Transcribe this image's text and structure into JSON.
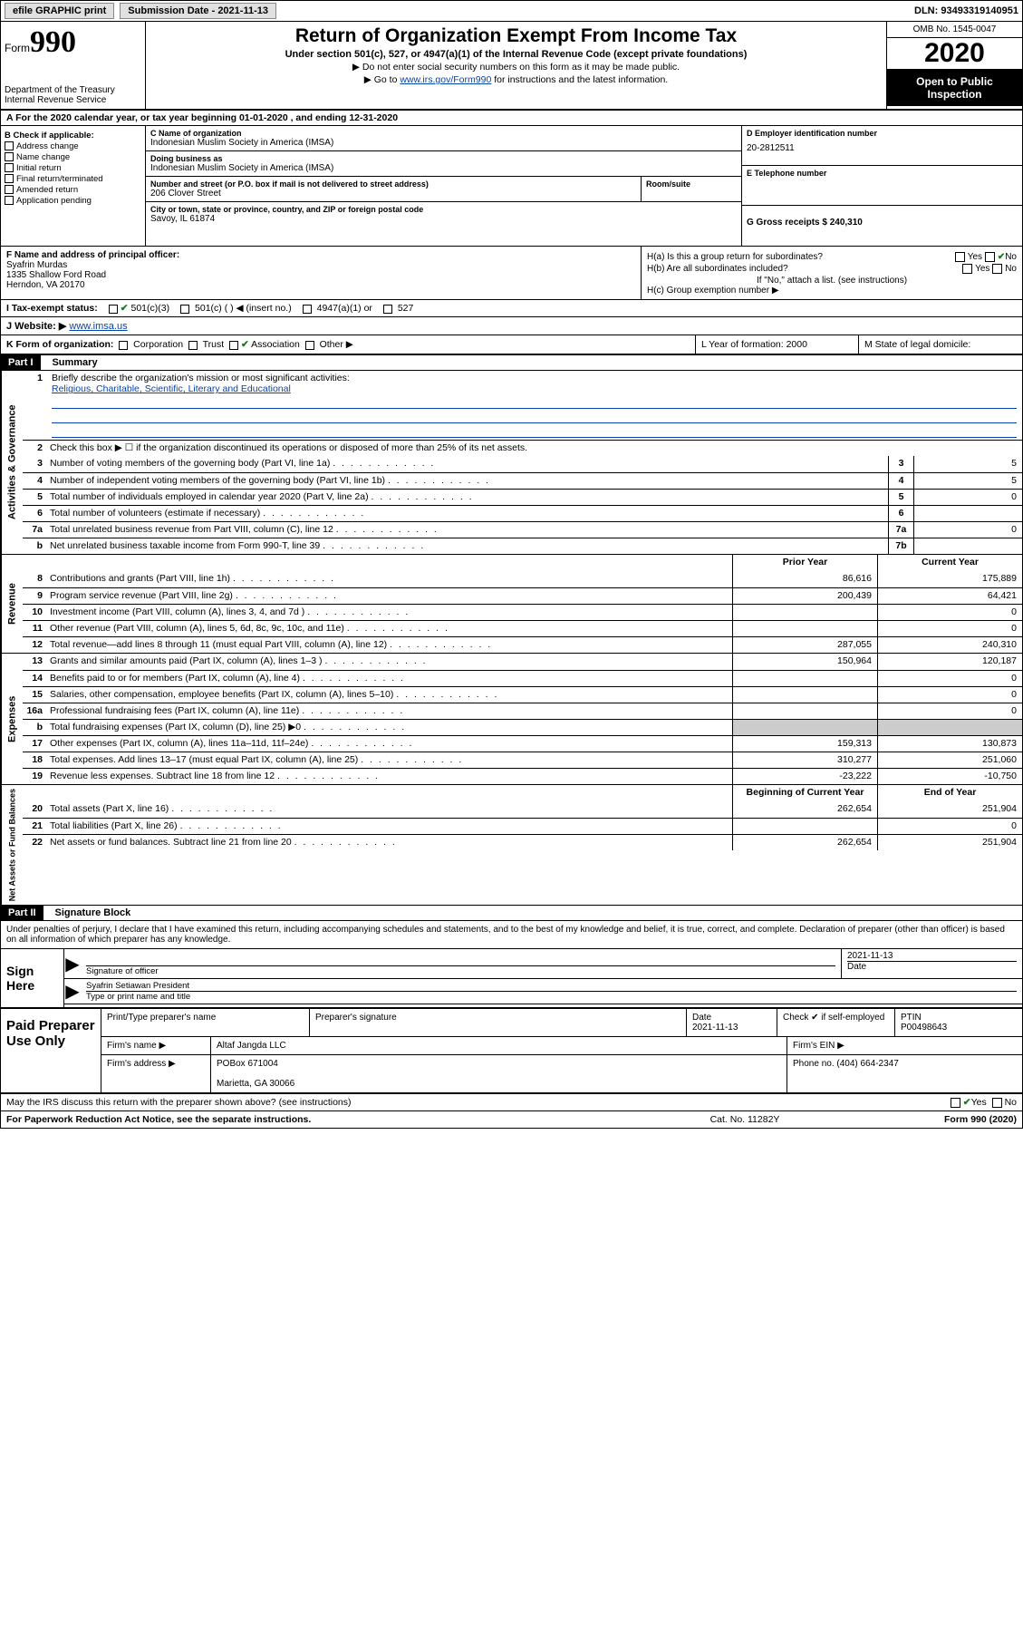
{
  "colors": {
    "link": "#0645ad",
    "check": "#1a7a1a",
    "shade": "#cccccc"
  },
  "topbar": {
    "efile": "efile GRAPHIC print",
    "subdate_label": "Submission Date - 2021-11-13",
    "dln": "DLN: 93493319140951"
  },
  "header": {
    "form_prefix": "Form",
    "form_number": "990",
    "dept1": "Department of the Treasury",
    "dept2": "Internal Revenue Service",
    "title": "Return of Organization Exempt From Income Tax",
    "subtitle": "Under section 501(c), 527, or 4947(a)(1) of the Internal Revenue Code (except private foundations)",
    "note1": "▶ Do not enter social security numbers on this form as it may be made public.",
    "note2_pre": "▶ Go to ",
    "note2_link": "www.irs.gov/Form990",
    "note2_post": " for instructions and the latest information.",
    "omb": "OMB No. 1545-0047",
    "year": "2020",
    "otp1": "Open to Public",
    "otp2": "Inspection"
  },
  "rowA": {
    "text": "A For the 2020 calendar year, or tax year beginning 01-01-2020    , and ending 12-31-2020"
  },
  "colB": {
    "label": "B Check if applicable:",
    "items": [
      "Address change",
      "Name change",
      "Initial return",
      "Final return/terminated",
      "Amended return",
      "Application pending"
    ]
  },
  "colC": {
    "name_label": "C Name of organization",
    "name": "Indonesian Muslim Society in America (IMSA)",
    "dba_label": "Doing business as",
    "dba": "Indonesian Muslim Society in America (IMSA)",
    "street_label": "Number and street (or P.O. box if mail is not delivered to street address)",
    "room_label": "Room/suite",
    "street": "206 Clover Street",
    "city_label": "City or town, state or province, country, and ZIP or foreign postal code",
    "city": "Savoy, IL  61874"
  },
  "colD": {
    "ein_label": "D Employer identification number",
    "ein": "20-2812511",
    "tel_label": "E Telephone number",
    "gross_label": "G Gross receipts $ 240,310"
  },
  "rowF": {
    "label": "F  Name and address of principal officer:",
    "name": "Syafrin Murdas",
    "addr1": "1335 Shallow Ford Road",
    "addr2": "Herndon, VA  20170"
  },
  "rowH": {
    "ha": "H(a)  Is this a group return for subordinates?",
    "hb": "H(b)  Are all subordinates included?",
    "hb_note": "If \"No,\" attach a list. (see instructions)",
    "hc": "H(c)  Group exemption number ▶",
    "ha_no_checked": true
  },
  "rowI": {
    "label": "I     Tax-exempt status:",
    "opt1": "501(c)(3)",
    "opt2": "501(c) (  ) ◀ (insert no.)",
    "opt3": "4947(a)(1) or",
    "opt4": "527",
    "opt1_checked": true
  },
  "rowJ": {
    "label": "J    Website: ▶",
    "url": "www.imsa.us"
  },
  "rowK": {
    "k": "K Form of organization:",
    "opts": [
      "Corporation",
      "Trust",
      "Association",
      "Other ▶"
    ],
    "checked_idx": 2,
    "l": "L Year of formation: 2000",
    "m": "M State of legal domicile:"
  },
  "part1": {
    "hdr": "Part I",
    "label": "Summary",
    "q1_label": "Briefly describe the organization's mission or most significant activities:",
    "q1_text": "Religious, Charitable, Scientific, Literary and Educational",
    "q2": "Check this box ▶ ☐  if the organization discontinued its operations or disposed of more than 25% of its net assets."
  },
  "gov_rows": [
    {
      "n": "3",
      "t": "Number of voting members of the governing body (Part VI, line 1a)",
      "box": "3",
      "v": "5"
    },
    {
      "n": "4",
      "t": "Number of independent voting members of the governing body (Part VI, line 1b)",
      "box": "4",
      "v": "5"
    },
    {
      "n": "5",
      "t": "Total number of individuals employed in calendar year 2020 (Part V, line 2a)",
      "box": "5",
      "v": "0"
    },
    {
      "n": "6",
      "t": "Total number of volunteers (estimate if necessary)",
      "box": "6",
      "v": ""
    },
    {
      "n": "7a",
      "t": "Total unrelated business revenue from Part VIII, column (C), line 12",
      "box": "7a",
      "v": "0"
    },
    {
      "n": "b",
      "t": "Net unrelated business taxable income from Form 990-T, line 39",
      "box": "7b",
      "v": ""
    }
  ],
  "rev_hdr": {
    "prior": "Prior Year",
    "curr": "Current Year"
  },
  "rev_rows": [
    {
      "n": "8",
      "t": "Contributions and grants (Part VIII, line 1h)",
      "p": "86,616",
      "c": "175,889"
    },
    {
      "n": "9",
      "t": "Program service revenue (Part VIII, line 2g)",
      "p": "200,439",
      "c": "64,421"
    },
    {
      "n": "10",
      "t": "Investment income (Part VIII, column (A), lines 3, 4, and 7d )",
      "p": "",
      "c": "0"
    },
    {
      "n": "11",
      "t": "Other revenue (Part VIII, column (A), lines 5, 6d, 8c, 9c, 10c, and 11e)",
      "p": "",
      "c": "0"
    },
    {
      "n": "12",
      "t": "Total revenue—add lines 8 through 11 (must equal Part VIII, column (A), line 12)",
      "p": "287,055",
      "c": "240,310"
    }
  ],
  "exp_rows": [
    {
      "n": "13",
      "t": "Grants and similar amounts paid (Part IX, column (A), lines 1–3 )",
      "p": "150,964",
      "c": "120,187"
    },
    {
      "n": "14",
      "t": "Benefits paid to or for members (Part IX, column (A), line 4)",
      "p": "",
      "c": "0"
    },
    {
      "n": "15",
      "t": "Salaries, other compensation, employee benefits (Part IX, column (A), lines 5–10)",
      "p": "",
      "c": "0"
    },
    {
      "n": "16a",
      "t": "Professional fundraising fees (Part IX, column (A), line 11e)",
      "p": "",
      "c": "0"
    },
    {
      "n": "b",
      "t": "Total fundraising expenses (Part IX, column (D), line 25) ▶0",
      "p": "",
      "c": "",
      "shade": true
    },
    {
      "n": "17",
      "t": "Other expenses (Part IX, column (A), lines 11a–11d, 11f–24e)",
      "p": "159,313",
      "c": "130,873"
    },
    {
      "n": "18",
      "t": "Total expenses. Add lines 13–17 (must equal Part IX, column (A), line 25)",
      "p": "310,277",
      "c": "251,060"
    },
    {
      "n": "19",
      "t": "Revenue less expenses. Subtract line 18 from line 12",
      "p": "-23,222",
      "c": "-10,750"
    }
  ],
  "net_hdr": {
    "beg": "Beginning of Current Year",
    "end": "End of Year"
  },
  "net_rows": [
    {
      "n": "20",
      "t": "Total assets (Part X, line 16)",
      "p": "262,654",
      "c": "251,904"
    },
    {
      "n": "21",
      "t": "Total liabilities (Part X, line 26)",
      "p": "",
      "c": "0"
    },
    {
      "n": "22",
      "t": "Net assets or fund balances. Subtract line 21 from line 20",
      "p": "262,654",
      "c": "251,904"
    }
  ],
  "sides": {
    "gov": "Activities & Governance",
    "rev": "Revenue",
    "exp": "Expenses",
    "net": "Net Assets or Fund Balances"
  },
  "part2": {
    "hdr": "Part II",
    "label": "Signature Block",
    "penalty": "Under penalties of perjury, I declare that I have examined this return, including accompanying schedules and statements, and to the best of my knowledge and belief, it is true, correct, and complete. Declaration of preparer (other than officer) is based on all information of which preparer has any knowledge."
  },
  "sign": {
    "left": "Sign Here",
    "sig_label": "Signature of officer",
    "date": "2021-11-13",
    "date_label": "Date",
    "name": "Syafrin Setiawan President",
    "name_label": "Type or print name and title"
  },
  "prep": {
    "left": "Paid Preparer Use Only",
    "h1": "Print/Type preparer's name",
    "h2": "Preparer's signature",
    "h3": "Date",
    "h3v": "2021-11-13",
    "h4": "Check ✔ if self-employed",
    "h5": "PTIN",
    "h5v": "P00498643",
    "firm_name_l": "Firm's name   ▶",
    "firm_name": "Altaf Jangda LLC",
    "firm_ein_l": "Firm's EIN ▶",
    "firm_addr_l": "Firm's address ▶",
    "firm_addr1": "POBox 671004",
    "firm_addr2": "Marietta, GA  30066",
    "phone_l": "Phone no. (404) 664-2347"
  },
  "discuss": {
    "text": "May the IRS discuss this return with the preparer shown above? (see instructions)",
    "yes_checked": true
  },
  "footer": {
    "f1": "For Paperwork Reduction Act Notice, see the separate instructions.",
    "f2": "Cat. No. 11282Y",
    "f3": "Form 990 (2020)"
  }
}
